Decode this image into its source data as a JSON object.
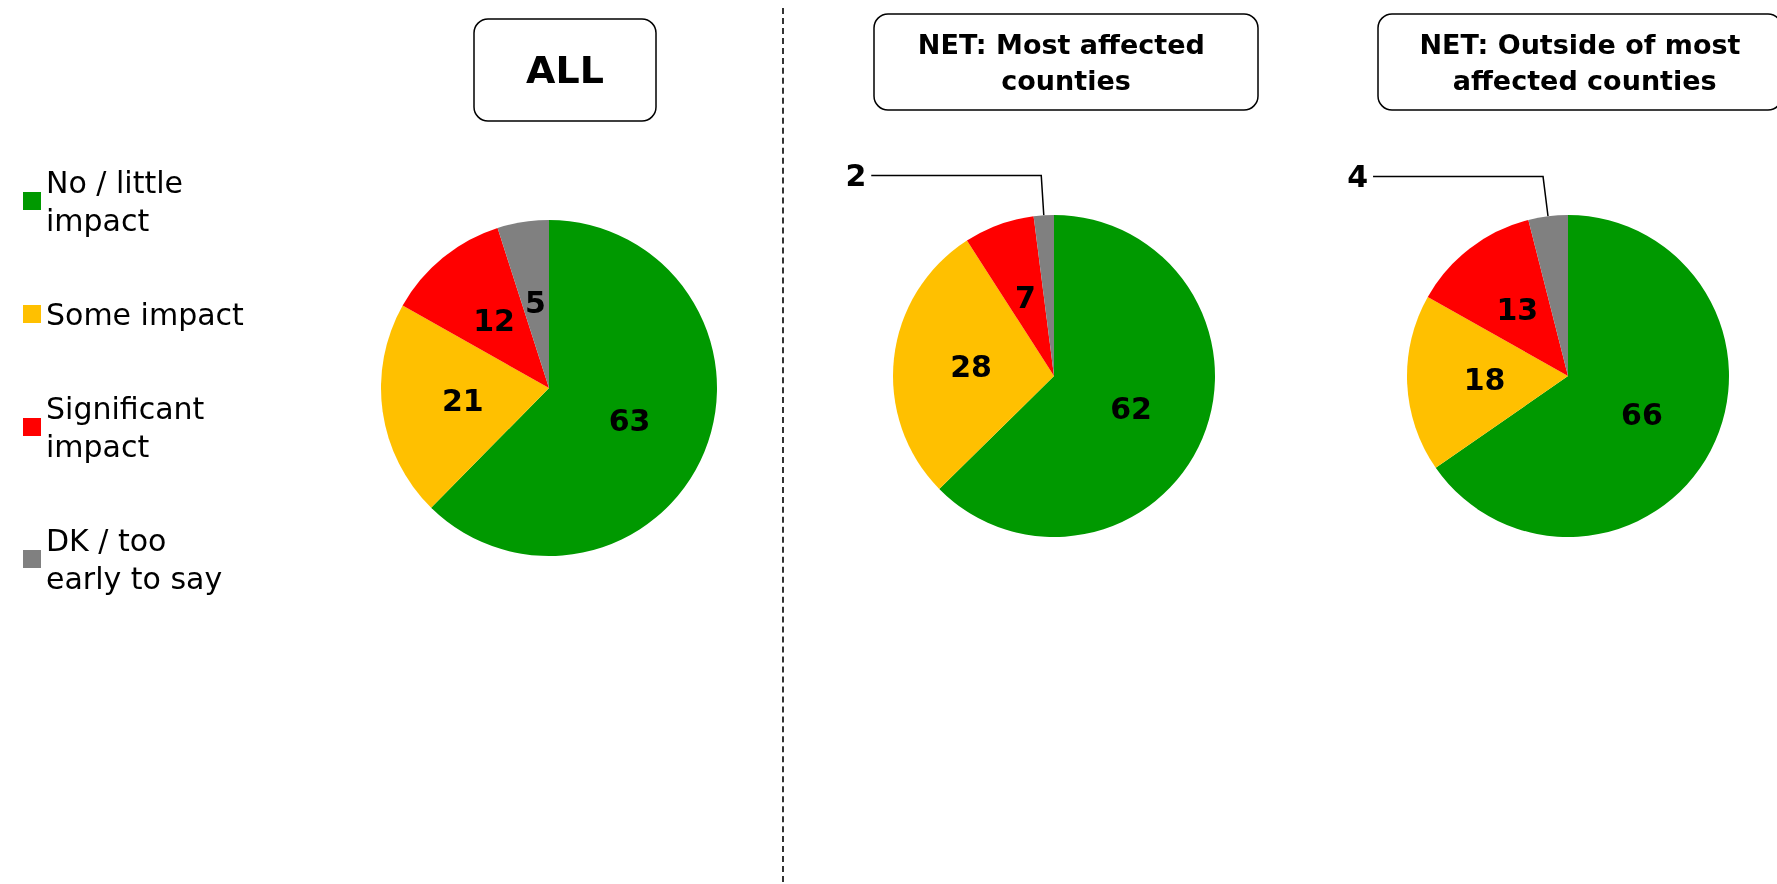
{
  "chart_data": [
    {
      "type": "pie",
      "title": "ALL",
      "categories": [
        "No / little impact",
        "Some impact",
        "Significant impact",
        "DK / too early to say"
      ],
      "values": [
        63,
        21,
        12,
        5
      ],
      "colors": [
        "#009900",
        "#ffc000",
        "#ff0000",
        "#808080"
      ],
      "data_labels": true,
      "legend": "left"
    },
    {
      "type": "pie",
      "title": "NET: Most affected counties",
      "categories": [
        null,
        null,
        null,
        null
      ],
      "values": [
        62,
        28,
        7,
        2
      ],
      "colors": [
        "#009900",
        "#ffc000",
        "#ff0000",
        "#808080"
      ],
      "data_labels": true
    },
    {
      "type": "pie",
      "title": "NET: Outside of most affected counties",
      "categories": [
        null,
        null,
        null,
        null
      ],
      "values": [
        66,
        18,
        13,
        4
      ],
      "colors": [
        "#009900",
        "#ffc000",
        "#ff0000",
        "#808080"
      ],
      "data_labels": true
    }
  ]
}
